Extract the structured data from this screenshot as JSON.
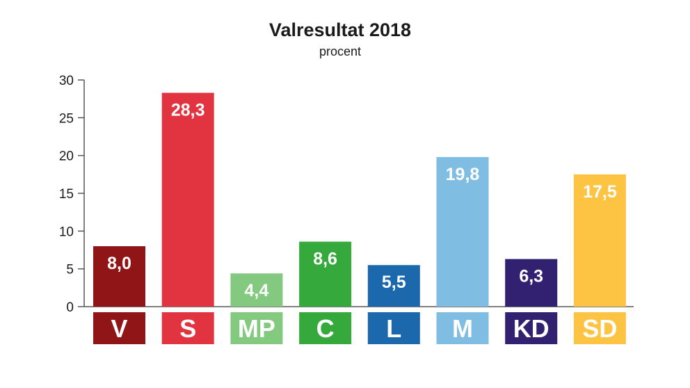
{
  "chart_data": {
    "type": "bar",
    "title": "Valresultat 2018",
    "subtitle": "procent",
    "xlabel": "",
    "ylabel": "",
    "ylim": [
      0,
      30
    ],
    "yticks": [
      0,
      5,
      10,
      15,
      20,
      25,
      30
    ],
    "grid": false,
    "categories": [
      "V",
      "S",
      "MP",
      "C",
      "L",
      "M",
      "KD",
      "SD"
    ],
    "values": [
      8.0,
      28.3,
      4.4,
      8.6,
      5.5,
      19.8,
      6.3,
      17.5
    ],
    "value_labels": [
      "8,0",
      "28,3",
      "4,4",
      "8,6",
      "5,5",
      "19,8",
      "6,3",
      "17,5"
    ],
    "colors": [
      "#8f1516",
      "#e13340",
      "#83c980",
      "#36a93d",
      "#1c68ad",
      "#80bde2",
      "#312170",
      "#fdc443"
    ],
    "axis_color": "#555555"
  }
}
